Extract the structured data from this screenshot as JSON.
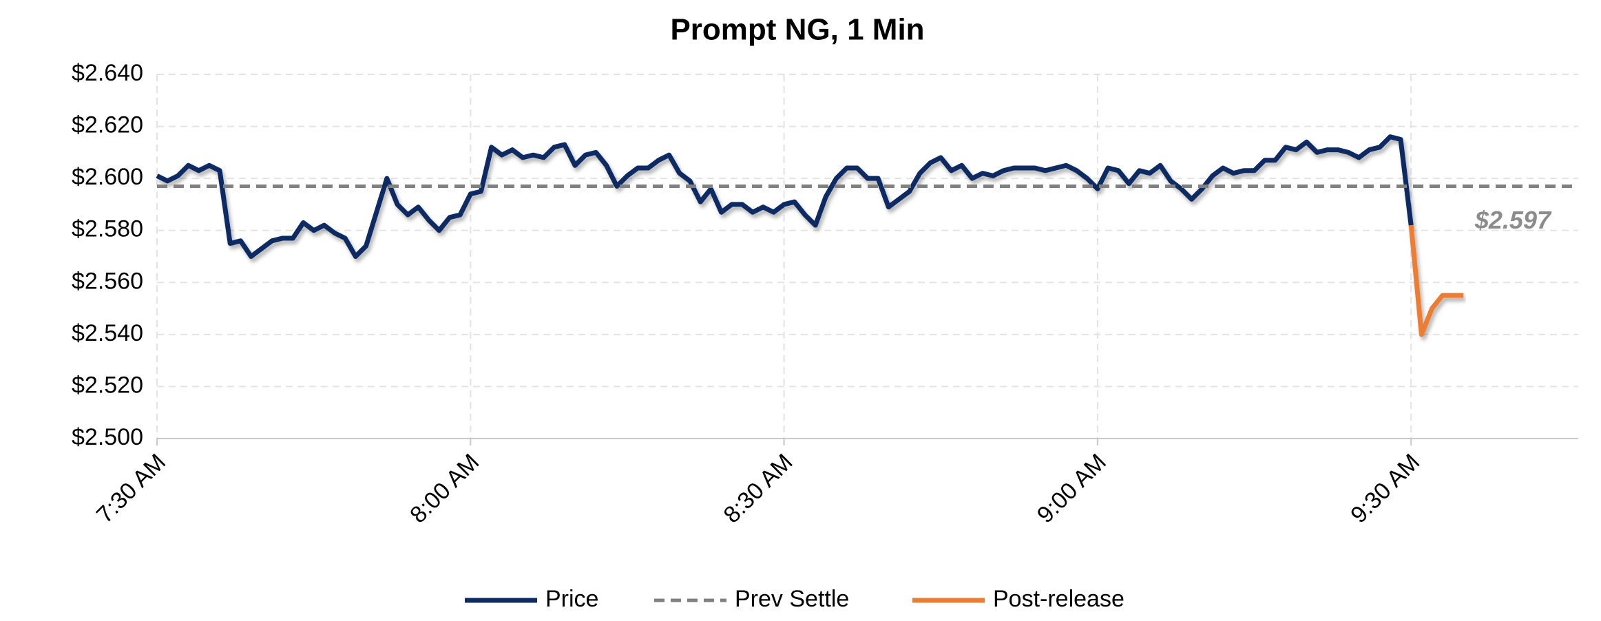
{
  "chart_data": {
    "type": "line",
    "title": "Prompt NG, 1 Min",
    "xlim": [
      "07:30",
      "09:46"
    ],
    "xticks": [
      {
        "value": "07:30",
        "label": "7:30 AM"
      },
      {
        "value": "08:00",
        "label": "8:00 AM"
      },
      {
        "value": "08:30",
        "label": "8:30 AM"
      },
      {
        "value": "09:00",
        "label": "9:00 AM"
      },
      {
        "value": "09:30",
        "label": "9:30 AM"
      }
    ],
    "ylim": [
      2.5,
      2.64
    ],
    "yticks": [
      {
        "value": 2.5,
        "label": "$2.500"
      },
      {
        "value": 2.52,
        "label": "$2.520"
      },
      {
        "value": 2.54,
        "label": "$2.540"
      },
      {
        "value": 2.56,
        "label": "$2.560"
      },
      {
        "value": 2.58,
        "label": "$2.580"
      },
      {
        "value": 2.6,
        "label": "$2.600"
      },
      {
        "value": 2.62,
        "label": "$2.620"
      },
      {
        "value": 2.64,
        "label": "$2.640"
      }
    ],
    "grid": true,
    "legend": "bottom",
    "series": [
      {
        "name": "Price",
        "color": "#0d2a63",
        "style": "solid",
        "x": [
          "07:30",
          "07:31",
          "07:32",
          "07:33",
          "07:34",
          "07:35",
          "07:36",
          "07:37",
          "07:38",
          "07:39",
          "07:40",
          "07:41",
          "07:42",
          "07:43",
          "07:44",
          "07:45",
          "07:46",
          "07:47",
          "07:48",
          "07:49",
          "07:50",
          "07:51",
          "07:52",
          "07:53",
          "07:54",
          "07:55",
          "07:56",
          "07:57",
          "07:58",
          "07:59",
          "08:00",
          "08:01",
          "08:02",
          "08:03",
          "08:04",
          "08:05",
          "08:06",
          "08:07",
          "08:08",
          "08:09",
          "08:10",
          "08:11",
          "08:12",
          "08:13",
          "08:14",
          "08:15",
          "08:16",
          "08:17",
          "08:18",
          "08:19",
          "08:20",
          "08:21",
          "08:22",
          "08:23",
          "08:24",
          "08:25",
          "08:26",
          "08:27",
          "08:28",
          "08:29",
          "08:30",
          "08:31",
          "08:32",
          "08:33",
          "08:34",
          "08:35",
          "08:36",
          "08:37",
          "08:38",
          "08:39",
          "08:40",
          "08:41",
          "08:42",
          "08:43",
          "08:44",
          "08:45",
          "08:46",
          "08:47",
          "08:48",
          "08:49",
          "08:50",
          "08:51",
          "08:52",
          "08:53",
          "08:54",
          "08:55",
          "08:56",
          "08:57",
          "08:58",
          "08:59",
          "09:00",
          "09:01",
          "09:02",
          "09:03",
          "09:04",
          "09:05",
          "09:06",
          "09:07",
          "09:08",
          "09:09",
          "09:10",
          "09:11",
          "09:12",
          "09:13",
          "09:14",
          "09:15",
          "09:16",
          "09:17",
          "09:18",
          "09:19",
          "09:20",
          "09:21",
          "09:22",
          "09:23",
          "09:24",
          "09:25",
          "09:26",
          "09:27",
          "09:28",
          "09:29",
          "09:30"
        ],
        "values": [
          2.601,
          2.599,
          2.601,
          2.605,
          2.603,
          2.605,
          2.603,
          2.575,
          2.576,
          2.57,
          2.573,
          2.576,
          2.577,
          2.577,
          2.583,
          2.58,
          2.582,
          2.579,
          2.577,
          2.57,
          2.574,
          2.587,
          2.6,
          2.59,
          2.586,
          2.589,
          2.584,
          2.58,
          2.585,
          2.586,
          2.594,
          2.595,
          2.612,
          2.609,
          2.611,
          2.608,
          2.609,
          2.608,
          2.612,
          2.613,
          2.605,
          2.609,
          2.61,
          2.605,
          2.597,
          2.601,
          2.604,
          2.604,
          2.607,
          2.609,
          2.602,
          2.599,
          2.591,
          2.596,
          2.587,
          2.59,
          2.59,
          2.587,
          2.589,
          2.587,
          2.59,
          2.591,
          2.586,
          2.582,
          2.593,
          2.6,
          2.604,
          2.604,
          2.6,
          2.6,
          2.589,
          2.592,
          2.595,
          2.602,
          2.606,
          2.608,
          2.603,
          2.605,
          2.6,
          2.602,
          2.601,
          2.603,
          2.604,
          2.604,
          2.604,
          2.603,
          2.604,
          2.605,
          2.603,
          2.6,
          2.596,
          2.604,
          2.603,
          2.598,
          2.603,
          2.602,
          2.605,
          2.599,
          2.596,
          2.592,
          2.596,
          2.601,
          2.604,
          2.602,
          2.603,
          2.603,
          2.607,
          2.607,
          2.612,
          2.611,
          2.614,
          2.61,
          2.611,
          2.611,
          2.61,
          2.608,
          2.611,
          2.612,
          2.616,
          2.615,
          2.582
        ]
      },
      {
        "name": "Prev Settle",
        "color": "#808080",
        "style": "dashed",
        "x": [
          "07:30",
          "09:46"
        ],
        "values": [
          2.597,
          2.597
        ]
      },
      {
        "name": "Post-release",
        "color": "#ed7d31",
        "style": "solid",
        "x": [
          "09:30",
          "09:31",
          "09:32",
          "09:33",
          "09:34",
          "09:35"
        ],
        "values": [
          2.582,
          2.54,
          2.55,
          2.555,
          2.555,
          2.555
        ]
      }
    ],
    "annotations": [
      {
        "text": "$2.597",
        "series": 1
      }
    ]
  }
}
